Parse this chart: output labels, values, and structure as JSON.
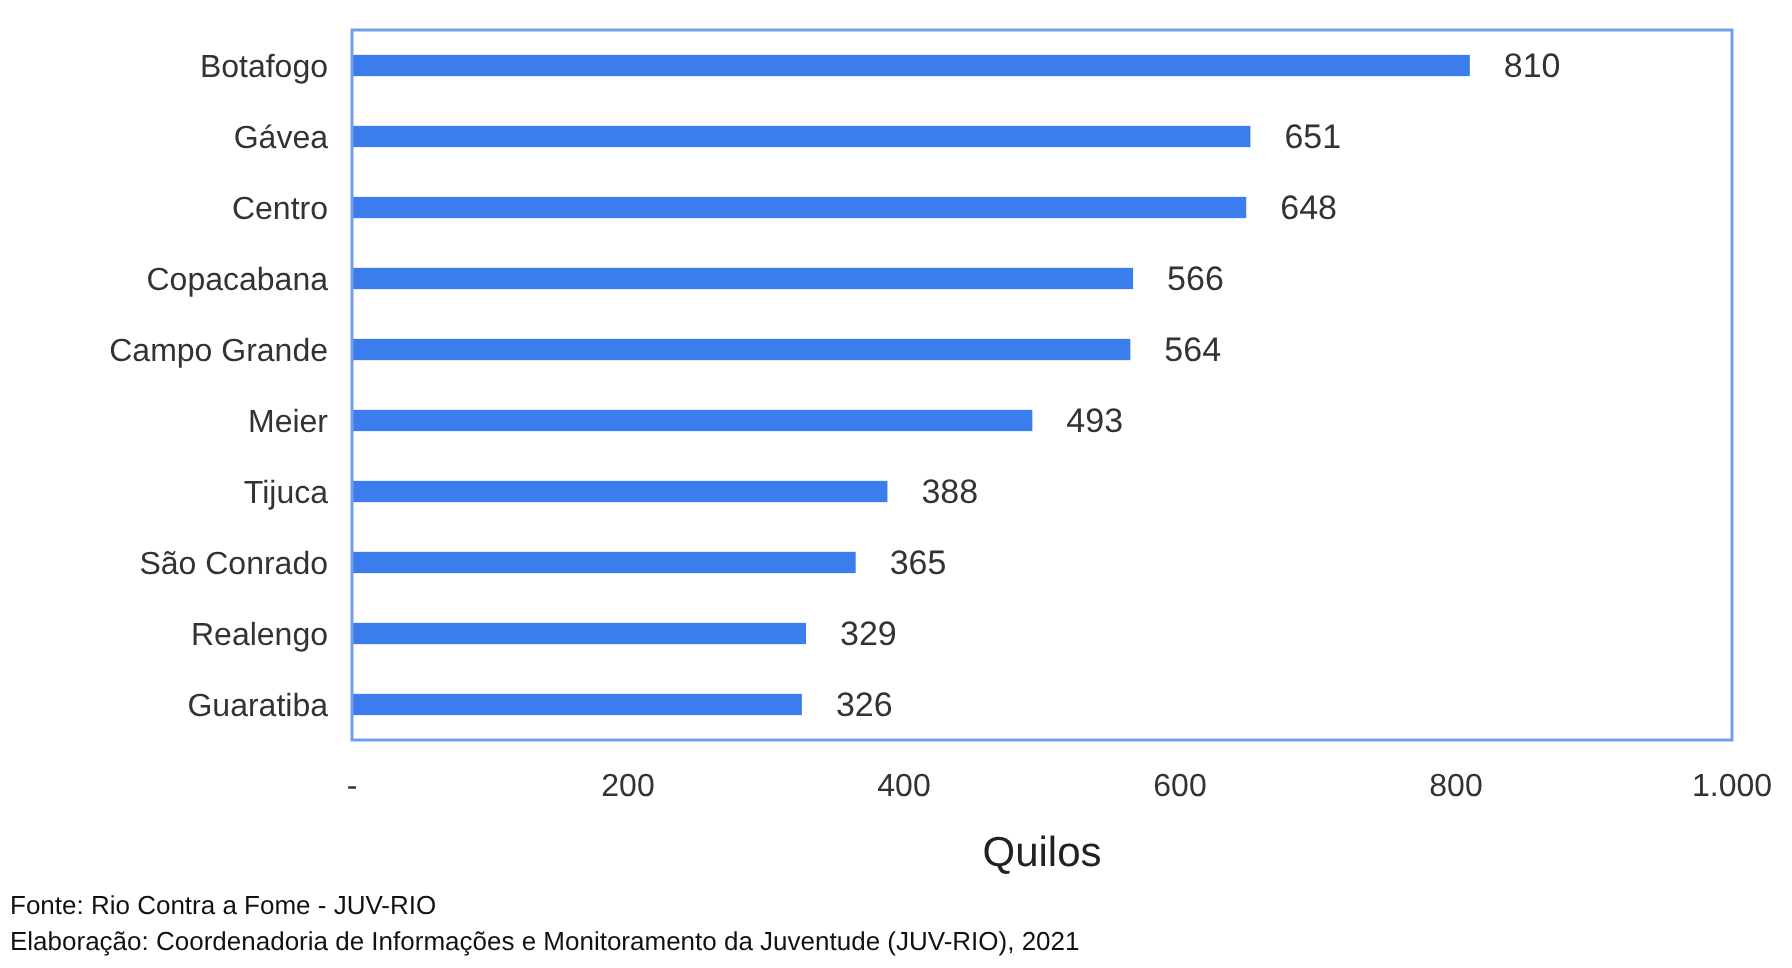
{
  "chart_data": {
    "type": "bar",
    "orientation": "horizontal",
    "categories": [
      "Botafogo",
      "Gávea",
      "Centro",
      "Copacabana",
      "Campo Grande",
      "Meier",
      "Tijuca",
      "São Conrado",
      "Realengo",
      "Guaratiba"
    ],
    "values": [
      810,
      651,
      648,
      566,
      564,
      493,
      388,
      365,
      329,
      326
    ],
    "color": "#3b7ded",
    "data_labels": true,
    "xlabel": "Quilos",
    "xlim": [
      0,
      1000
    ],
    "xticks": [
      {
        "value": 0,
        "label": "-"
      },
      200,
      400,
      600,
      800,
      {
        "value": 1000,
        "label": "1.000"
      }
    ],
    "annotations": [
      "Fonte: Rio Contra a Fome - JUV-RIO",
      "Elaboração: Coordenadoria de Informações e Monitoramento da Juventude (JUV-RIO), 2021"
    ]
  }
}
